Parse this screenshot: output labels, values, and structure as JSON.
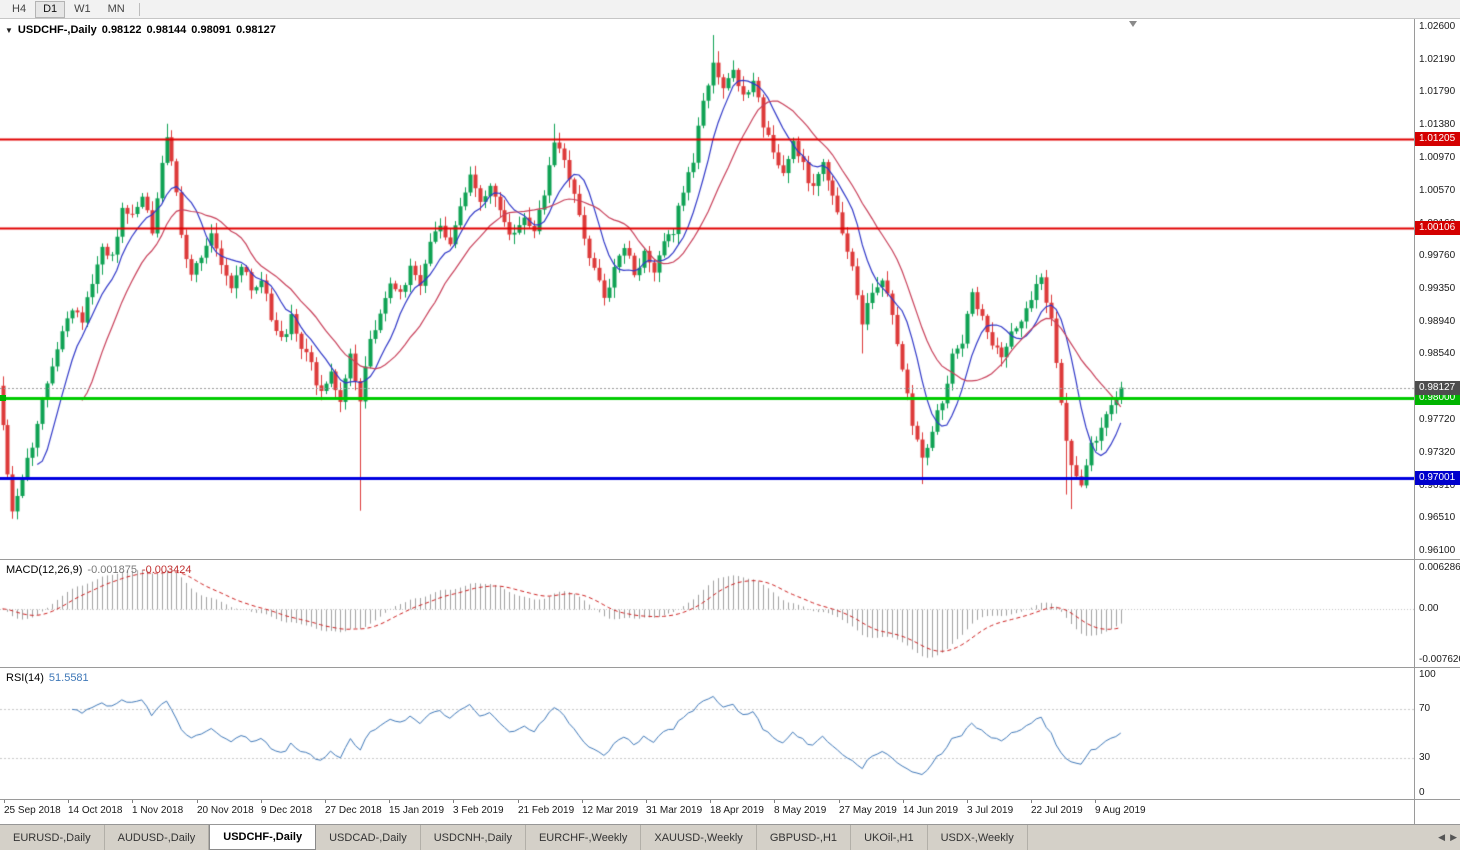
{
  "toolbar": {
    "timeframes": [
      {
        "label": "H4",
        "active": false
      },
      {
        "label": "D1",
        "active": true
      },
      {
        "label": "W1",
        "active": false
      },
      {
        "label": "MN",
        "active": false
      }
    ]
  },
  "chart": {
    "header": {
      "symbol": "USDCHF-,Daily",
      "open": "0.98122",
      "high": "0.98144",
      "low": "0.98091",
      "close": "0.98127"
    },
    "y_axis_labels": [
      "1.02600",
      "1.02190",
      "1.01790",
      "1.01380",
      "1.00970",
      "1.00570",
      "1.00160",
      "0.99760",
      "0.99350",
      "0.98940",
      "0.98540",
      "0.98130",
      "0.97720",
      "0.97320",
      "0.96910",
      "0.96510",
      "0.96100"
    ],
    "hlines": [
      {
        "price": 1.01205,
        "label": "1.01205",
        "color_key": "red",
        "width": 2
      },
      {
        "price": 1.00106,
        "label": "1.00106",
        "color_key": "red",
        "width": 2
      },
      {
        "price": 0.98,
        "label": "0.98000",
        "color_key": "green",
        "width": 3
      },
      {
        "price": 0.97001,
        "label": "0.97001",
        "color_key": "blue",
        "width": 3
      }
    ],
    "current_price": {
      "value": 0.98127,
      "label": "0.98127"
    }
  },
  "indicators": {
    "macd": {
      "title": "MACD(12,26,9)",
      "value_main": "-0.001875",
      "value_signal": "-0.003424",
      "axis_labels": {
        "top": "0.006286",
        "zero": "0.00",
        "bottom": "-0.007620"
      }
    },
    "rsi": {
      "title": "RSI(14)",
      "value": "51.5581",
      "axis_labels": [
        "100",
        "70",
        "30",
        "0"
      ],
      "levels": [
        70,
        30
      ]
    }
  },
  "time_axis": {
    "dates": [
      "25 Sep 2018",
      "14 Oct 2018",
      "1 Nov 2018",
      "20 Nov 2018",
      "9 Dec 2018",
      "27 Dec 2018",
      "15 Jan 2019",
      "3 Feb 2019",
      "21 Feb 2019",
      "12 Mar 2019",
      "31 Mar 2019",
      "18 Apr 2019",
      "8 May 2019",
      "27 May 2019",
      "14 Jun 2019",
      "3 Jul 2019",
      "22 Jul 2019",
      "9 Aug 2019"
    ]
  },
  "tabs": {
    "items": [
      "EURUSD-,Daily",
      "AUDUSD-,Daily",
      "USDCHF-,Daily",
      "USDCAD-,Daily",
      "USDCNH-,Daily",
      "EURCHF-,Weekly",
      "XAUUSD-,Weekly",
      "GBPUSD-,H1",
      "UKOil-,H1",
      "USDX-,Weekly"
    ],
    "active_index": 2
  },
  "colors": {
    "bull": "#0fa254",
    "bear": "#dd3a3a",
    "ma_fast": "#3038c8",
    "ma_slow": "#c8405a",
    "hline_red": "#e00000",
    "hline_green": "#00cc00",
    "hline_blue": "#0000e0",
    "price_line": "#999999",
    "tag_red": "#d40000",
    "tag_green": "#00b400",
    "tag_blue": "#0000cc",
    "tag_current": "#4d4d4d",
    "macd_hist": "#a0a0a0",
    "macd_signal": "#cc2020",
    "rsi_line": "#3f78b8",
    "rsi_level": "#c8c8c8"
  },
  "chart_data": {
    "type": "candlestick",
    "symbol": "USDCHF",
    "period": "Daily",
    "num_candles": 226,
    "price_range": [
      0.961,
      1.026
    ],
    "close_anchors": [
      [
        0,
        0.976
      ],
      [
        1,
        0.9705
      ],
      [
        2,
        0.9658
      ],
      [
        4,
        0.97
      ],
      [
        6,
        0.9745
      ],
      [
        8,
        0.98
      ],
      [
        10,
        0.9845
      ],
      [
        12,
        0.988
      ],
      [
        14,
        0.9915
      ],
      [
        16,
        0.9895
      ],
      [
        18,
        0.9945
      ],
      [
        20,
        0.999
      ],
      [
        22,
        0.9975
      ],
      [
        24,
        1.0035
      ],
      [
        26,
        1.0025
      ],
      [
        28,
        1.0055
      ],
      [
        30,
        1.001
      ],
      [
        32,
        1.0085
      ],
      [
        33,
        1.0122
      ],
      [
        35,
        1.006
      ],
      [
        36,
        1.0005
      ],
      [
        38,
        0.995
      ],
      [
        40,
        0.9975
      ],
      [
        42,
        1.0
      ],
      [
        44,
        0.9958
      ],
      [
        46,
        0.9938
      ],
      [
        48,
        0.9968
      ],
      [
        50,
        0.993
      ],
      [
        52,
        0.9952
      ],
      [
        54,
        0.9902
      ],
      [
        56,
        0.9872
      ],
      [
        58,
        0.9898
      ],
      [
        60,
        0.9862
      ],
      [
        62,
        0.984
      ],
      [
        64,
        0.9802
      ],
      [
        66,
        0.983
      ],
      [
        68,
        0.9792
      ],
      [
        70,
        0.9848
      ],
      [
        72,
        0.98
      ],
      [
        74,
        0.9868
      ],
      [
        76,
        0.9908
      ],
      [
        78,
        0.9948
      ],
      [
        80,
        0.9928
      ],
      [
        82,
        0.9962
      ],
      [
        84,
        0.994
      ],
      [
        86,
        0.9988
      ],
      [
        88,
        1.0012
      ],
      [
        90,
        0.9985
      ],
      [
        92,
        1.0038
      ],
      [
        94,
        1.0072
      ],
      [
        96,
        1.0048
      ],
      [
        98,
        1.0058
      ],
      [
        101,
        1.0018
      ],
      [
        103,
        0.9998
      ],
      [
        105,
        1.0028
      ],
      [
        107,
        1.0008
      ],
      [
        109,
        1.0058
      ],
      [
        111,
        1.0122
      ],
      [
        113,
        1.0092
      ],
      [
        115,
        1.0058
      ],
      [
        117,
        1.0
      ],
      [
        119,
        0.9958
      ],
      [
        121,
        0.9928
      ],
      [
        123,
        0.9958
      ],
      [
        125,
        0.9988
      ],
      [
        127,
        0.9958
      ],
      [
        129,
        0.9978
      ],
      [
        131,
        0.9958
      ],
      [
        133,
        0.9988
      ],
      [
        135,
        1.0008
      ],
      [
        137,
        1.0058
      ],
      [
        139,
        1.0098
      ],
      [
        141,
        1.0172
      ],
      [
        143,
        1.0212
      ],
      [
        145,
        1.0182
      ],
      [
        147,
        1.0202
      ],
      [
        149,
        1.0172
      ],
      [
        151,
        1.0192
      ],
      [
        153,
        1.0142
      ],
      [
        155,
        1.0098
      ],
      [
        157,
        1.0078
      ],
      [
        159,
        1.0112
      ],
      [
        161,
        1.0088
      ],
      [
        163,
        1.0058
      ],
      [
        165,
        1.0088
      ],
      [
        167,
        1.0048
      ],
      [
        169,
        1.0008
      ],
      [
        171,
        0.9958
      ],
      [
        173,
        0.9898
      ],
      [
        175,
        0.9928
      ],
      [
        177,
        0.9948
      ],
      [
        179,
        0.9898
      ],
      [
        181,
        0.9838
      ],
      [
        183,
        0.9768
      ],
      [
        185,
        0.9728
      ],
      [
        187,
        0.9758
      ],
      [
        189,
        0.9798
      ],
      [
        191,
        0.9848
      ],
      [
        193,
        0.9868
      ],
      [
        195,
        0.9928
      ],
      [
        197,
        0.9898
      ],
      [
        199,
        0.9868
      ],
      [
        201,
        0.9848
      ],
      [
        203,
        0.9878
      ],
      [
        205,
        0.9898
      ],
      [
        207,
        0.9928
      ],
      [
        209,
        0.9948
      ],
      [
        211,
        0.9898
      ],
      [
        213,
        0.9788
      ],
      [
        215,
        0.9718
      ],
      [
        217,
        0.9698
      ],
      [
        219,
        0.9738
      ],
      [
        221,
        0.9768
      ],
      [
        223,
        0.9788
      ],
      [
        225,
        0.9813
      ]
    ],
    "spikes": [
      {
        "i": 2,
        "low": 0.965
      },
      {
        "i": 33,
        "high": 1.014
      },
      {
        "i": 72,
        "low": 0.966
      },
      {
        "i": 111,
        "high": 1.014
      },
      {
        "i": 143,
        "high": 1.025
      },
      {
        "i": 144,
        "high": 1.023
      },
      {
        "i": 173,
        "low": 0.9855
      },
      {
        "i": 185,
        "low": 0.9693
      },
      {
        "i": 214,
        "low": 0.968
      },
      {
        "i": 215,
        "low": 0.9662
      },
      {
        "i": 218,
        "low": 0.969
      }
    ],
    "seed": 1234567,
    "jitter": {
      "close": 0.0014,
      "wick": 0.0011
    },
    "ma_fast_period": 8,
    "ma_slow_period": 17,
    "macd_periods": [
      12,
      26,
      9
    ],
    "rsi_period": 14
  }
}
